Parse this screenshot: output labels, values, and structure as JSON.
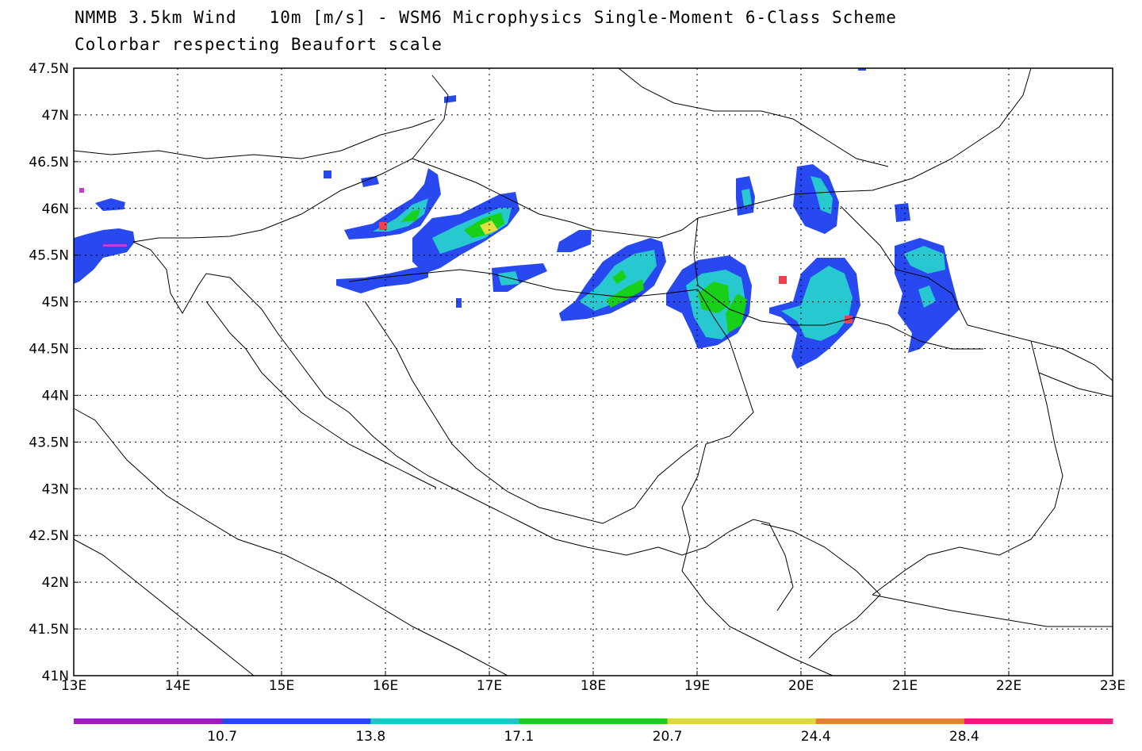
{
  "title": {
    "line1": "NMMB 3.5km Wind   10m [m/s] - WSM6 Microphysics Single-Moment 6-Class Scheme",
    "line2": "Colorbar respecting Beaufort scale"
  },
  "map": {
    "lon_range": [
      13,
      23
    ],
    "lat_range": [
      41,
      47.5
    ],
    "lon_ticks": [
      "13E",
      "14E",
      "15E",
      "16E",
      "17E",
      "18E",
      "19E",
      "20E",
      "21E",
      "22E",
      "23E"
    ],
    "lat_ticks": [
      "47.5N",
      "47N",
      "46.5N",
      "46N",
      "45.5N",
      "45N",
      "44.5N",
      "44N",
      "43.5N",
      "43N",
      "42.5N",
      "42N",
      "41.5N",
      "41N"
    ],
    "grid": "dotted"
  },
  "colorbar": {
    "labels": [
      "10.7",
      "13.8",
      "17.1",
      "20.7",
      "24.4",
      "28.4"
    ],
    "colors": [
      "#a018c8",
      "#2848f0",
      "#18c8c8",
      "#18d018",
      "#e0d838",
      "#e88030",
      "#f0187c"
    ]
  },
  "wind_colors": {
    "blue": "#2848f0",
    "cyan": "#28c8d0",
    "green": "#18d018",
    "yellow": "#e0e040",
    "red": "#f04050",
    "purple": "#c040d0"
  }
}
